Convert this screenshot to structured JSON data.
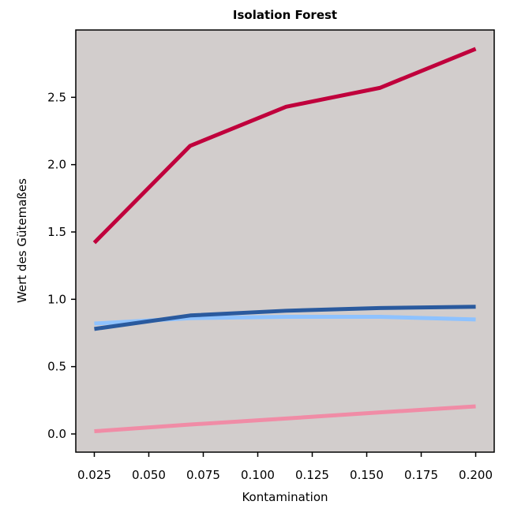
{
  "chart_data": {
    "type": "line",
    "title": "Isolation Forest",
    "xlabel": "Kontamination",
    "ylabel": "Wert des Gütemaßes",
    "x": [
      0.025,
      0.069,
      0.113,
      0.156,
      0.2
    ],
    "xlim": [
      0.0165,
      0.2085
    ],
    "ylim": [
      -0.135,
      3.0
    ],
    "xticks": [
      "0.025",
      "0.050",
      "0.075",
      "0.100",
      "0.125",
      "0.150",
      "0.175",
      "0.200"
    ],
    "yticks": [
      "0.0",
      "0.5",
      "1.0",
      "1.5",
      "2.0",
      "2.5"
    ],
    "grid": false,
    "series": [
      {
        "color": "#c0003c",
        "values": [
          1.42,
          2.14,
          2.43,
          2.57,
          2.86
        ]
      },
      {
        "color": "#8ec2ff",
        "values": [
          0.82,
          0.86,
          0.87,
          0.87,
          0.85
        ]
      },
      {
        "color": "#2a5a9e",
        "values": [
          0.78,
          0.88,
          0.915,
          0.935,
          0.945
        ]
      },
      {
        "color": "#f08ca6",
        "values": [
          0.02,
          0.07,
          0.115,
          0.16,
          0.205
        ]
      }
    ],
    "plot_background": "#d2cdcc"
  }
}
